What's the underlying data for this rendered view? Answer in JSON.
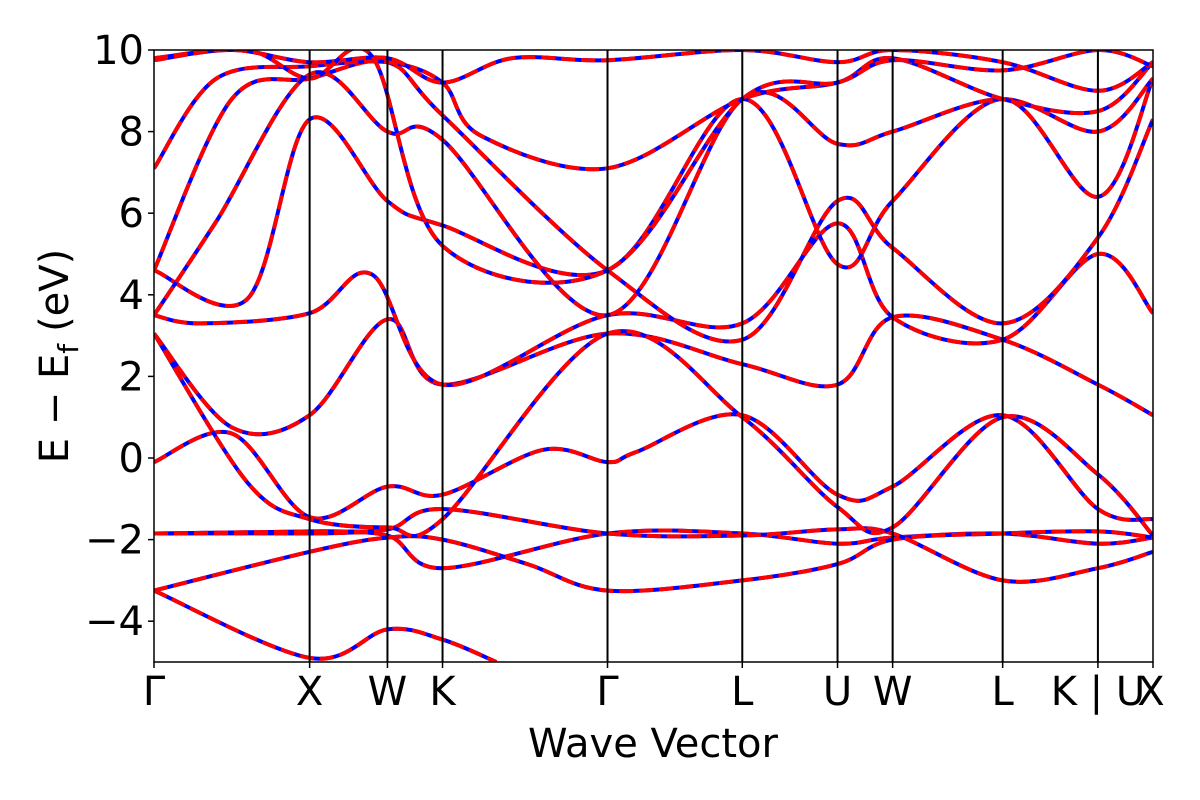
{
  "chart_data": {
    "type": "line",
    "title": "",
    "xlabel": "Wave Vector",
    "ylabel": "E − E_f (eV)",
    "ylabel_parts": {
      "main": "E − E",
      "sub": "f",
      "unit": "(eV)"
    },
    "ylim": [
      -5,
      10
    ],
    "yticks": [
      -4,
      -2,
      0,
      2,
      4,
      6,
      8,
      10
    ],
    "ytick_labels": [
      "−4",
      "−2",
      "0",
      "2",
      "4",
      "6",
      "8",
      "10"
    ],
    "grid": false,
    "legend": "none",
    "kpath": [
      {
        "label": "Γ",
        "x": 0.0
      },
      {
        "label": "X",
        "x": 1.0
      },
      {
        "label": "W",
        "x": 1.5
      },
      {
        "label": "K",
        "x": 1.854
      },
      {
        "label": "Γ",
        "x": 2.914
      },
      {
        "label": "L",
        "x": 3.78
      },
      {
        "label": "U",
        "x": 4.392
      },
      {
        "label": "W",
        "x": 4.746
      },
      {
        "label": "L",
        "x": 5.453
      },
      {
        "label": "K | U",
        "x": 6.065
      },
      {
        "label": "X",
        "x": 6.419
      }
    ],
    "series_style": [
      {
        "color": "#0000ff",
        "dash": "solid"
      },
      {
        "color": "#ff0000",
        "dash": "dashed"
      }
    ],
    "bands": [
      {
        "points": [
          [
            0,
            -1.85
          ],
          [
            1,
            -1.85
          ],
          [
            1.5,
            -1.9
          ],
          [
            1.854,
            -2.7
          ],
          [
            2.914,
            -1.85
          ],
          [
            3.78,
            -1.85
          ],
          [
            4.392,
            -2.1
          ],
          [
            4.746,
            -1.95
          ],
          [
            5.453,
            -1.85
          ],
          [
            6.065,
            -2.1
          ],
          [
            6.419,
            -1.95
          ]
        ]
      },
      {
        "points": [
          [
            0,
            -3.25
          ],
          [
            1,
            -2.3
          ],
          [
            1.5,
            -1.95
          ],
          [
            1.854,
            -2.0
          ],
          [
            2.4,
            -2.6
          ],
          [
            2.914,
            -3.25
          ],
          [
            3.78,
            -3.0
          ],
          [
            4.392,
            -2.6
          ],
          [
            4.746,
            -2.0
          ],
          [
            5.453,
            -1.85
          ],
          [
            6.065,
            -1.8
          ],
          [
            6.419,
            -1.95
          ]
        ]
      },
      {
        "points": [
          [
            0,
            -3.25
          ],
          [
            1,
            -4.9
          ],
          [
            1.5,
            -4.2
          ],
          [
            1.854,
            -4.45
          ],
          [
            2.2,
            -5.0
          ]
        ]
      },
      {
        "points": [
          [
            0,
            -1.85
          ],
          [
            1,
            -1.8
          ],
          [
            1.5,
            -1.75
          ],
          [
            1.854,
            -1.25
          ],
          [
            2.914,
            -1.85
          ],
          [
            3.78,
            -1.9
          ],
          [
            4.392,
            -1.75
          ],
          [
            4.746,
            -1.85
          ],
          [
            5.453,
            -3.0
          ],
          [
            6.065,
            -2.7
          ],
          [
            6.419,
            -2.3
          ]
        ]
      },
      {
        "points": [
          [
            0,
            -0.1
          ],
          [
            0.5,
            0.6
          ],
          [
            1,
            -1.45
          ],
          [
            1.5,
            -0.7
          ],
          [
            1.854,
            -0.9
          ],
          [
            2.5,
            0.2
          ],
          [
            2.914,
            -0.1
          ],
          [
            3.1,
            0.15
          ],
          [
            3.78,
            1.05
          ],
          [
            4.392,
            -0.9
          ],
          [
            4.746,
            -0.7
          ],
          [
            5.453,
            1.05
          ],
          [
            6.065,
            -1.25
          ],
          [
            6.419,
            -1.5
          ]
        ]
      },
      {
        "points": [
          [
            0,
            3.05
          ],
          [
            0.5,
            0.75
          ],
          [
            1,
            1.05
          ],
          [
            1.5,
            3.4
          ],
          [
            1.854,
            1.8
          ],
          [
            2.914,
            3.05
          ],
          [
            3.78,
            2.3
          ],
          [
            4.392,
            1.8
          ],
          [
            4.746,
            3.45
          ],
          [
            5.453,
            2.9
          ],
          [
            6.065,
            1.8
          ],
          [
            6.419,
            1.05
          ]
        ]
      },
      {
        "points": [
          [
            0,
            3.05
          ],
          [
            0.6,
            -0.6
          ],
          [
            1,
            -1.5
          ],
          [
            1.5,
            -1.7
          ],
          [
            1.854,
            -1.5
          ],
          [
            2.914,
            3.05
          ],
          [
            3.78,
            1.0
          ],
          [
            4.392,
            -1.2
          ],
          [
            4.746,
            -1.7
          ],
          [
            5.453,
            1.0
          ],
          [
            6.065,
            -0.4
          ],
          [
            6.419,
            -1.9
          ]
        ]
      },
      {
        "points": [
          [
            0,
            3.5
          ],
          [
            0.3,
            3.3
          ],
          [
            1,
            3.55
          ],
          [
            1.4,
            4.5
          ],
          [
            1.854,
            1.8
          ],
          [
            2.914,
            3.5
          ],
          [
            3.78,
            3.3
          ],
          [
            4.392,
            5.75
          ],
          [
            4.746,
            3.45
          ],
          [
            5.453,
            2.9
          ],
          [
            6.065,
            5.0
          ],
          [
            6.419,
            3.55
          ]
        ]
      },
      {
        "points": [
          [
            0,
            4.6
          ],
          [
            0.5,
            8.8
          ],
          [
            1,
            9.3
          ],
          [
            1.5,
            9.7
          ],
          [
            1.854,
            8.4
          ],
          [
            2.914,
            4.6
          ],
          [
            3.78,
            2.9
          ],
          [
            4.392,
            6.3
          ],
          [
            4.746,
            5.15
          ],
          [
            5.453,
            3.3
          ],
          [
            6.065,
            5.4
          ],
          [
            6.419,
            8.3
          ]
        ]
      },
      {
        "points": [
          [
            0,
            4.6
          ],
          [
            0.6,
            3.9
          ],
          [
            1,
            8.3
          ],
          [
            1.5,
            6.3
          ],
          [
            1.854,
            5.7
          ],
          [
            2.914,
            4.6
          ],
          [
            3.78,
            8.8
          ],
          [
            4.392,
            4.75
          ],
          [
            4.746,
            6.3
          ],
          [
            5.453,
            8.8
          ],
          [
            6.065,
            6.4
          ],
          [
            6.419,
            9.3
          ]
        ]
      },
      {
        "points": [
          [
            0,
            3.5
          ],
          [
            0.4,
            5.8
          ],
          [
            1,
            9.4
          ],
          [
            1.5,
            8.0
          ],
          [
            1.854,
            7.8
          ],
          [
            2.914,
            3.5
          ],
          [
            3.78,
            8.8
          ],
          [
            4.392,
            7.7
          ],
          [
            4.746,
            8.0
          ],
          [
            5.453,
            8.8
          ],
          [
            6.065,
            8.0
          ],
          [
            6.419,
            9.3
          ]
        ]
      },
      {
        "points": [
          [
            0,
            7.1
          ],
          [
            0.4,
            9.3
          ],
          [
            1,
            9.6
          ],
          [
            1.5,
            9.7
          ],
          [
            1.854,
            9.2
          ],
          [
            2.1,
            7.9
          ],
          [
            2.914,
            7.1
          ],
          [
            3.78,
            8.8
          ],
          [
            4.392,
            9.2
          ],
          [
            4.746,
            9.8
          ],
          [
            5.453,
            8.8
          ],
          [
            6.065,
            8.5
          ],
          [
            6.419,
            9.7
          ]
        ]
      },
      {
        "points": [
          [
            0,
            9.75
          ],
          [
            0.5,
            10.0
          ],
          [
            1,
            9.7
          ],
          [
            1.5,
            9.8
          ],
          [
            1.854,
            9.2
          ],
          [
            2.3,
            9.8
          ],
          [
            2.914,
            9.75
          ],
          [
            3.78,
            10.0
          ],
          [
            4.392,
            9.7
          ],
          [
            4.746,
            10.0
          ],
          [
            5.453,
            9.7
          ],
          [
            6.065,
            9.0
          ],
          [
            6.419,
            9.7
          ]
        ]
      },
      {
        "points": [
          [
            0,
            9.8
          ],
          [
            0.6,
            10.0
          ],
          [
            1,
            9.3
          ],
          [
            1.4,
            9.85
          ],
          [
            1.854,
            5.2
          ],
          [
            2.914,
            4.6
          ],
          [
            3.78,
            8.8
          ],
          [
            4.392,
            9.2
          ],
          [
            4.746,
            9.75
          ],
          [
            5.453,
            9.5
          ],
          [
            6.065,
            10.0
          ],
          [
            6.419,
            9.6
          ]
        ]
      }
    ]
  }
}
